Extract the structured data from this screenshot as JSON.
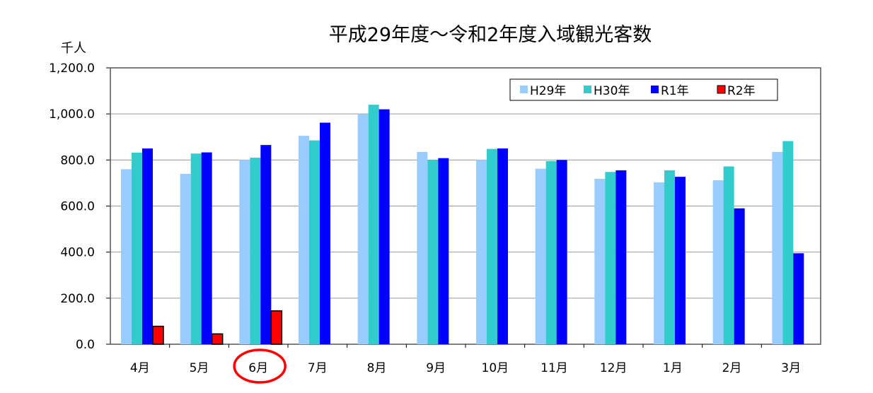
{
  "chart_data": {
    "type": "bar",
    "title": "平成29年度～令和2年度入域観光客数",
    "ylabel": "千人",
    "xlabel": "",
    "ylim": [
      0,
      1200
    ],
    "ytick_step": 200,
    "ytick_labels": [
      "0.0",
      "200.0",
      "400.0",
      "600.0",
      "800.0",
      "1,000.0",
      "1,200.0"
    ],
    "grid": true,
    "legend_position": "top-right",
    "categories": [
      "4月",
      "5月",
      "6月",
      "7月",
      "8月",
      "9月",
      "10月",
      "11月",
      "12月",
      "1月",
      "2月",
      "3月"
    ],
    "highlighted_category": "6月",
    "series": [
      {
        "name": "H29年",
        "color": "#99CCFF",
        "values": [
          760,
          740,
          800,
          905,
          1000,
          835,
          800,
          762,
          718,
          703,
          712,
          835
        ]
      },
      {
        "name": "H30年",
        "color": "#33CCCC",
        "values": [
          832,
          828,
          810,
          885,
          1040,
          800,
          848,
          795,
          748,
          755,
          772,
          882
        ]
      },
      {
        "name": "R1年",
        "color": "#0000FF",
        "values": [
          850,
          833,
          865,
          962,
          1020,
          808,
          850,
          800,
          755,
          727,
          590,
          395
        ]
      },
      {
        "name": "R2年",
        "color": "#FF0000",
        "values": [
          78,
          45,
          145,
          null,
          null,
          null,
          null,
          null,
          null,
          null,
          null,
          null
        ]
      }
    ]
  }
}
